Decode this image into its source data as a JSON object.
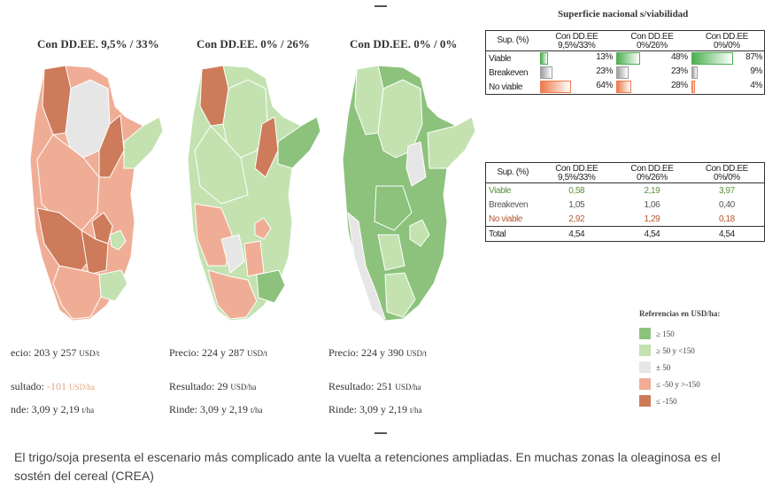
{
  "colors": {
    "dark_green": "#8cc27c",
    "light_green": "#c3e2b0",
    "grey": "#e6e6e6",
    "salmon": "#f0ad95",
    "dark_salmon": "#cd7b5a",
    "viable_bar": "#4caf50",
    "breakeven_bar": "#9e9e9e",
    "noviable_bar": "#ee7a4b"
  },
  "maps": [
    {
      "title": "Con DD.EE. 9,5% / 33%",
      "precio_label": "ecio:",
      "precio_value": "203 y 257",
      "precio_unit": "USD/t",
      "resultado_label": "sultado:",
      "resultado_value": "-101",
      "resultado_unit": "USD/ha",
      "rinde_label": "nde:",
      "rinde_value": "3,09 y 2,19",
      "rinde_unit": "t/ha"
    },
    {
      "title": "Con DD.EE. 0% / 26%",
      "precio_label": "Precio:",
      "precio_value": "224 y 287",
      "precio_unit": "USD/t",
      "resultado_label": "Resultado:",
      "resultado_value": "29",
      "resultado_unit": "USD/ha",
      "rinde_label": "Rinde:",
      "rinde_value": "3,09 y 2,19",
      "rinde_unit": "t/ha"
    },
    {
      "title": "Con DD.EE. 0% / 0%",
      "precio_label": "Precio:",
      "precio_value": "224 y 390",
      "precio_unit": "USD/t",
      "resultado_label": "Resultado:",
      "resultado_value": "251",
      "resultado_unit": "USD/ha",
      "rinde_label": "Rinde:",
      "rinde_value": "3,09 y 2,19",
      "rinde_unit": "t/ha"
    }
  ],
  "table1": {
    "title": "Superficie nacional s/viabilidad",
    "corner": "Sup. (%)",
    "columns": [
      {
        "line1": "Con DD.EE",
        "line2": "9,5%/33%"
      },
      {
        "line1": "Con DD.EE",
        "line2": "0%/26%"
      },
      {
        "line1": "Con DD.EE",
        "line2": "0%/0%"
      }
    ],
    "rows": [
      {
        "label": "Viable",
        "values": [
          "13%",
          "48%",
          "87%"
        ],
        "fractions": [
          0.13,
          0.48,
          0.87
        ],
        "kind": "viable"
      },
      {
        "label": "Breakeven",
        "values": [
          "23%",
          "23%",
          "9%"
        ],
        "fractions": [
          0.23,
          0.23,
          0.09
        ],
        "kind": "breakeven"
      },
      {
        "label": "No viable",
        "values": [
          "64%",
          "28%",
          "4%"
        ],
        "fractions": [
          0.64,
          0.28,
          0.04
        ],
        "kind": "noviable"
      }
    ]
  },
  "table2": {
    "corner": "Sup. (%)",
    "columns": [
      {
        "line1": "Con DD.EE",
        "line2": "9,5%/33%"
      },
      {
        "line1": "Con DD.EE",
        "line2": "0%/26%"
      },
      {
        "line1": "Con DD.EE",
        "line2": "0%/0%"
      }
    ],
    "rows": [
      {
        "label": "Viable",
        "values": [
          "0,58",
          "2,19",
          "3,97"
        ],
        "kind": "viable"
      },
      {
        "label": "Breakeven",
        "values": [
          "1,05",
          "1,06",
          "0,40"
        ],
        "kind": "breakeven"
      },
      {
        "label": "No viable",
        "values": [
          "2,92",
          "1,29",
          "0,18"
        ],
        "kind": "noviable"
      },
      {
        "label": "Total",
        "values": [
          "4,54",
          "4,54",
          "4,54"
        ],
        "kind": "total"
      }
    ]
  },
  "legend": {
    "title": "Referencias en USD/ha:",
    "items": [
      {
        "label": "≥ 150",
        "color": "#8cc27c"
      },
      {
        "label": "≥ 50 y <150",
        "color": "#c3e2b0"
      },
      {
        "label": "± 50",
        "color": "#e6e6e6"
      },
      {
        "label": "≤ -50 y >-150",
        "color": "#f0ad95"
      },
      {
        "label": "≤ -150",
        "color": "#cd7b5a"
      }
    ]
  },
  "caption": "El trigo/soja presenta el escenario más complicado ante la vuelta a retenciones ampliadas. En muchas zonas la oleaginosa es el sostén del cereal (CREA)"
}
